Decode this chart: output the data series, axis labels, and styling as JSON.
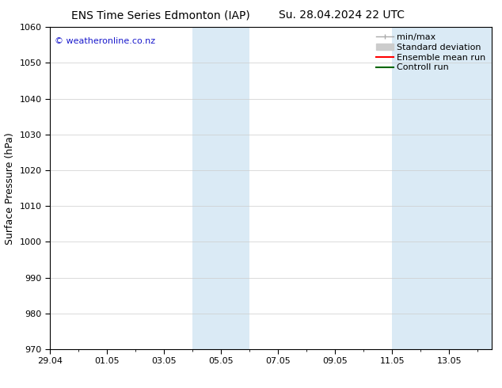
{
  "title_left": "ENS Time Series Edmonton (IAP)",
  "title_right": "Su. 28.04.2024 22 UTC",
  "ylabel": "Surface Pressure (hPa)",
  "ylim": [
    970,
    1060
  ],
  "yticks": [
    970,
    980,
    990,
    1000,
    1010,
    1020,
    1030,
    1040,
    1050,
    1060
  ],
  "xtick_labels": [
    "29.04",
    "01.05",
    "03.05",
    "05.05",
    "07.05",
    "09.05",
    "11.05",
    "13.05"
  ],
  "xtick_positions": [
    0,
    2,
    4,
    6,
    8,
    10,
    12,
    14
  ],
  "xlim": [
    0,
    15.5
  ],
  "shaded_bands": [
    {
      "x_start": 5.0,
      "x_end": 7.0
    },
    {
      "x_start": 12.0,
      "x_end": 15.5
    }
  ],
  "shaded_color": "#daeaf5",
  "watermark": "© weatheronline.co.nz",
  "watermark_color": "#1a1acc",
  "legend_items": [
    {
      "label": "min/max",
      "color": "#aaaaaa",
      "lw": 1,
      "style": "errbar"
    },
    {
      "label": "Standard deviation",
      "color": "#cccccc",
      "lw": 6,
      "style": "band"
    },
    {
      "label": "Ensemble mean run",
      "color": "#ff0000",
      "lw": 1.5,
      "style": "line"
    },
    {
      "label": "Controll run",
      "color": "#006600",
      "lw": 1.5,
      "style": "line"
    }
  ],
  "bg_color": "#ffffff",
  "grid_color": "#cccccc",
  "font_family": "DejaVu Sans",
  "title_fontsize": 10,
  "axis_label_fontsize": 9,
  "tick_fontsize": 8,
  "watermark_fontsize": 8,
  "legend_fontsize": 8
}
